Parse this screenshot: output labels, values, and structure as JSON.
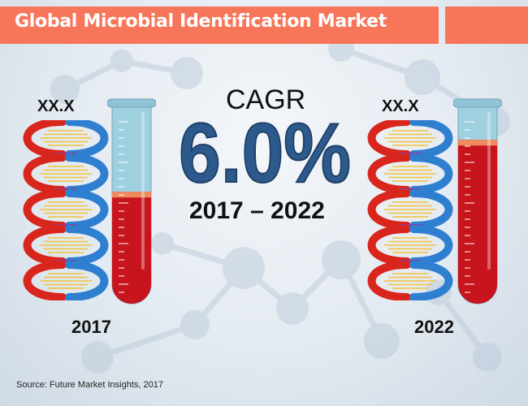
{
  "title": "Global Microbial Identification Market",
  "left": {
    "value": "XX.X",
    "year": "2017",
    "fill_level": 0.56
  },
  "right": {
    "value": "XX.X",
    "year": "2022",
    "fill_level": 0.82
  },
  "cagr": {
    "label": "CAGR",
    "value": "6.0%",
    "period": "2017 – 2022"
  },
  "source": "Source: Future Market Insights, 2017",
  "colors": {
    "title_bar": "#f7765a",
    "cagr_value": "#2d5a8c",
    "liquid": "#c8141d",
    "tube_glass": "#9fd0e0",
    "dna_red": "#d9261c",
    "dna_blue": "#2f7fd1",
    "dna_purple": "#8a3fa0",
    "dna_rung": "#f3c23a"
  }
}
